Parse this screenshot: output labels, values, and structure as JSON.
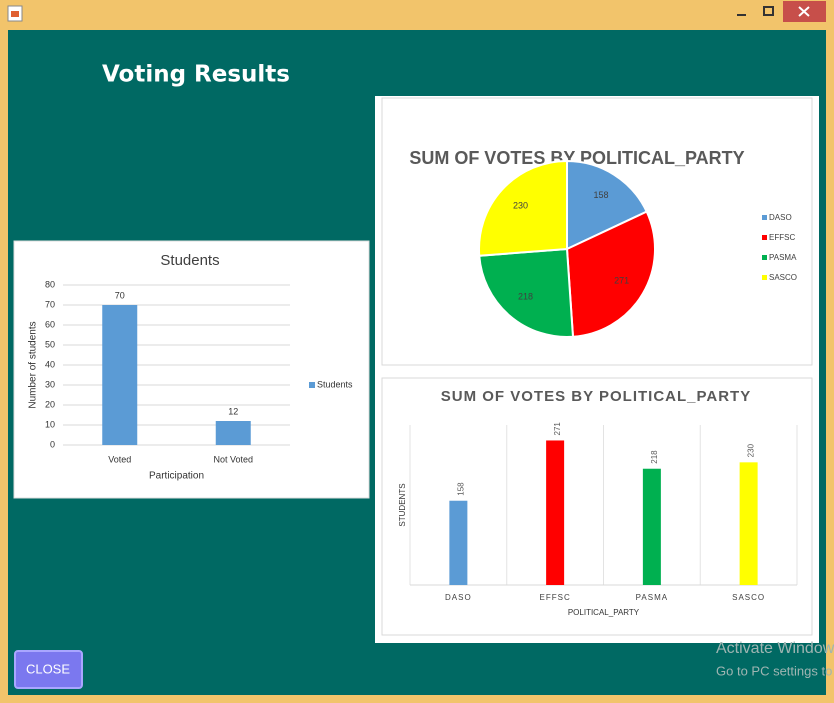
{
  "header": {
    "title": "Voting Results"
  },
  "chart_data": [
    {
      "type": "bar",
      "title": "Students",
      "x_label": "Participation",
      "y_label": "Number of students",
      "categories": [
        "Voted",
        "Not Voted"
      ],
      "series": [
        {
          "name": "Students",
          "color": "#5b9bd5",
          "values": [
            70,
            12
          ]
        }
      ],
      "ylim": [
        0,
        80
      ],
      "yticks": [
        0,
        10,
        20,
        30,
        40,
        50,
        60,
        70,
        80
      ],
      "grid": true,
      "legend": "right"
    },
    {
      "type": "pie",
      "title": "SUM OF VOTES BY POLITICAL_PARTY",
      "categories": [
        "DASO",
        "EFFSC",
        "PASMA",
        "SASCO"
      ],
      "values": [
        158,
        271,
        218,
        230
      ],
      "colors": [
        "#5b9bd5",
        "#ff0000",
        "#00b050",
        "#ffff00"
      ],
      "legend": "right"
    },
    {
      "type": "bar",
      "title": "SUM OF VOTES BY POLITICAL_PARTY",
      "x_label": "POLITICAL_PARTY",
      "y_label": "STUDENTS",
      "categories": [
        "DASO",
        "EFFSC",
        "PASMA",
        "SASCO"
      ],
      "values": [
        158,
        271,
        218,
        230
      ],
      "colors": [
        "#5b9bd5",
        "#ff0000",
        "#00b050",
        "#ffff00"
      ],
      "ylim": [
        0,
        300
      ]
    }
  ],
  "buttons": {
    "close": "CLOSE"
  },
  "watermark": {
    "line1": "Activate Windows",
    "line2": "Go to PC settings to activate Windows."
  }
}
